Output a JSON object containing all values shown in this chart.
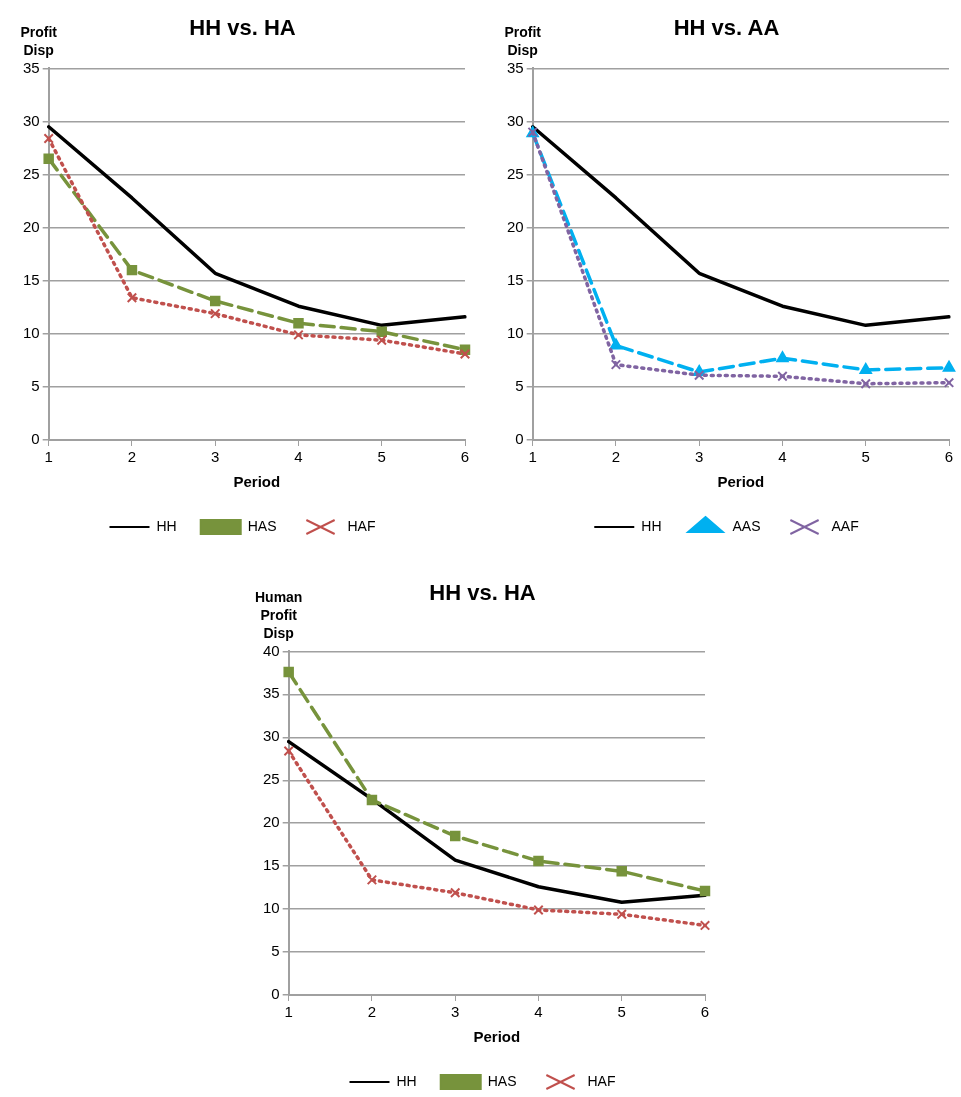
{
  "chart_data": [
    {
      "type": "line",
      "title": "HH vs. HA",
      "xlabel": "Period",
      "ylabel": "Profit Disp",
      "categories": [
        "1",
        "2",
        "3",
        "4",
        "5",
        "6"
      ],
      "ylim": [
        0,
        35
      ],
      "yticks": [
        0,
        5,
        10,
        15,
        20,
        25,
        30,
        35
      ],
      "grid": "y",
      "legend": "bottom",
      "series": [
        {
          "name": "HH",
          "color": "#000000",
          "marker": "none",
          "line_style": "solid",
          "values": [
            29.5,
            22.8,
            15.7,
            12.6,
            10.8,
            11.6
          ]
        },
        {
          "name": "HAS",
          "color": "#77933c",
          "marker": "square",
          "line_style": "dashed",
          "values": [
            26.5,
            16.0,
            13.1,
            11.0,
            10.2,
            8.5
          ]
        },
        {
          "name": "HAF",
          "color": "#c0504d",
          "marker": "cross",
          "line_style": "dotted",
          "values": [
            28.4,
            13.4,
            11.9,
            9.9,
            9.4,
            8.1
          ]
        }
      ]
    },
    {
      "type": "line",
      "title": "HH vs. AA",
      "xlabel": "Period",
      "ylabel": "Profit Disp",
      "categories": [
        "1",
        "2",
        "3",
        "4",
        "5",
        "6"
      ],
      "ylim": [
        0,
        35
      ],
      "yticks": [
        0,
        5,
        10,
        15,
        20,
        25,
        30,
        35
      ],
      "grid": "y",
      "legend": "bottom",
      "series": [
        {
          "name": "HH",
          "color": "#000000",
          "marker": "none",
          "line_style": "solid",
          "values": [
            29.5,
            22.8,
            15.7,
            12.6,
            10.8,
            11.6
          ]
        },
        {
          "name": "AAS",
          "color": "#00b0f0",
          "marker": "triangle",
          "line_style": "dashed",
          "values": [
            28.9,
            8.9,
            6.4,
            7.7,
            6.6,
            6.8
          ]
        },
        {
          "name": "AAF",
          "color": "#8064a2",
          "marker": "cross",
          "line_style": "dotted",
          "values": [
            29.0,
            7.1,
            6.1,
            6.0,
            5.3,
            5.4
          ]
        }
      ]
    },
    {
      "type": "line",
      "title": "HH vs. HA",
      "xlabel": "Period",
      "ylabel": "Human Profit Disp",
      "categories": [
        "1",
        "2",
        "3",
        "4",
        "5",
        "6"
      ],
      "ylim": [
        0,
        40
      ],
      "yticks": [
        0,
        5,
        10,
        15,
        20,
        25,
        30,
        35,
        40
      ],
      "grid": "y",
      "legend": "bottom",
      "series": [
        {
          "name": "HH",
          "color": "#000000",
          "marker": "none",
          "line_style": "solid",
          "values": [
            29.5,
            22.8,
            15.7,
            12.6,
            10.8,
            11.6
          ]
        },
        {
          "name": "HAS",
          "color": "#77933c",
          "marker": "square",
          "line_style": "dashed",
          "values": [
            37.6,
            22.7,
            18.5,
            15.6,
            14.4,
            12.1
          ]
        },
        {
          "name": "HAF",
          "color": "#c0504d",
          "marker": "cross",
          "line_style": "dotted",
          "values": [
            28.4,
            13.4,
            11.9,
            9.9,
            9.4,
            8.1
          ]
        }
      ]
    }
  ]
}
